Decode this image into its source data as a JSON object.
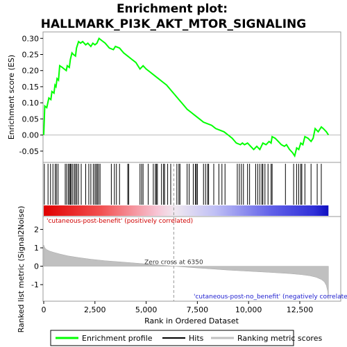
{
  "chart_data": {
    "type": "line",
    "title_line1": "Enrichment plot:",
    "title_line2": "HALLMARK_PI3K_AKT_MTOR_SIGNALING",
    "x_label": "Rank in Ordered Dataset",
    "es_panel": {
      "ylabel": "Enrichment score (ES)",
      "ylim": [
        -0.085,
        0.32
      ],
      "yticks": [
        -0.05,
        0.0,
        0.05,
        0.1,
        0.15,
        0.2,
        0.25,
        0.3
      ],
      "ytick_labels": [
        "-0.05",
        "0.00",
        "0.05",
        "0.10",
        "0.15",
        "0.20",
        "0.25",
        "0.30"
      ],
      "series_name": "Enrichment profile",
      "color": "#00ff00",
      "points": [
        [
          0,
          0.0
        ],
        [
          50,
          0.09
        ],
        [
          150,
          0.085
        ],
        [
          250,
          0.115
        ],
        [
          350,
          0.11
        ],
        [
          400,
          0.135
        ],
        [
          500,
          0.13
        ],
        [
          550,
          0.155
        ],
        [
          600,
          0.15
        ],
        [
          650,
          0.175
        ],
        [
          720,
          0.17
        ],
        [
          780,
          0.215
        ],
        [
          900,
          0.21
        ],
        [
          1000,
          0.205
        ],
        [
          1100,
          0.2
        ],
        [
          1150,
          0.215
        ],
        [
          1250,
          0.21
        ],
        [
          1300,
          0.235
        ],
        [
          1380,
          0.255
        ],
        [
          1450,
          0.25
        ],
        [
          1550,
          0.245
        ],
        [
          1600,
          0.27
        ],
        [
          1700,
          0.29
        ],
        [
          1800,
          0.285
        ],
        [
          1900,
          0.29
        ],
        [
          2050,
          0.28
        ],
        [
          2150,
          0.285
        ],
        [
          2300,
          0.275
        ],
        [
          2400,
          0.285
        ],
        [
          2500,
          0.28
        ],
        [
          2600,
          0.285
        ],
        [
          2700,
          0.3
        ],
        [
          2800,
          0.295
        ],
        [
          3000,
          0.285
        ],
        [
          3200,
          0.27
        ],
        [
          3400,
          0.265
        ],
        [
          3500,
          0.275
        ],
        [
          3700,
          0.27
        ],
        [
          3900,
          0.255
        ],
        [
          4100,
          0.245
        ],
        [
          4300,
          0.235
        ],
        [
          4500,
          0.225
        ],
        [
          4700,
          0.205
        ],
        [
          4850,
          0.215
        ],
        [
          5000,
          0.205
        ],
        [
          5200,
          0.195
        ],
        [
          5400,
          0.185
        ],
        [
          5600,
          0.175
        ],
        [
          5800,
          0.165
        ],
        [
          6000,
          0.155
        ],
        [
          6200,
          0.14
        ],
        [
          6400,
          0.125
        ],
        [
          6600,
          0.11
        ],
        [
          6800,
          0.095
        ],
        [
          7000,
          0.08
        ],
        [
          7200,
          0.07
        ],
        [
          7400,
          0.06
        ],
        [
          7600,
          0.05
        ],
        [
          7800,
          0.04
        ],
        [
          8000,
          0.035
        ],
        [
          8200,
          0.03
        ],
        [
          8400,
          0.02
        ],
        [
          8600,
          0.015
        ],
        [
          8800,
          0.01
        ],
        [
          9000,
          0.0
        ],
        [
          9200,
          -0.01
        ],
        [
          9400,
          -0.025
        ],
        [
          9600,
          -0.03
        ],
        [
          9700,
          -0.025
        ],
        [
          9800,
          -0.03
        ],
        [
          9950,
          -0.025
        ],
        [
          10100,
          -0.035
        ],
        [
          10250,
          -0.045
        ],
        [
          10400,
          -0.035
        ],
        [
          10550,
          -0.045
        ],
        [
          10700,
          -0.025
        ],
        [
          10850,
          -0.03
        ],
        [
          11000,
          -0.02
        ],
        [
          11100,
          -0.025
        ],
        [
          11150,
          -0.005
        ],
        [
          11300,
          -0.01
        ],
        [
          11450,
          -0.02
        ],
        [
          11600,
          -0.03
        ],
        [
          11750,
          -0.035
        ],
        [
          11850,
          -0.03
        ],
        [
          12000,
          -0.045
        ],
        [
          12150,
          -0.055
        ],
        [
          12250,
          -0.065
        ],
        [
          12350,
          -0.04
        ],
        [
          12450,
          -0.045
        ],
        [
          12550,
          -0.025
        ],
        [
          12650,
          -0.03
        ],
        [
          12750,
          -0.005
        ],
        [
          12900,
          -0.01
        ],
        [
          13050,
          -0.02
        ],
        [
          13150,
          -0.01
        ],
        [
          13250,
          0.02
        ],
        [
          13400,
          0.01
        ],
        [
          13550,
          0.025
        ],
        [
          13650,
          0.02
        ],
        [
          13800,
          0.01
        ],
        [
          13900,
          0.0
        ]
      ]
    },
    "hits_panel": {
      "series_name": "Hits",
      "color": "#000000",
      "positions": [
        30,
        210,
        330,
        450,
        560,
        620,
        700,
        1050,
        1120,
        1200,
        1260,
        1300,
        1350,
        1420,
        1500,
        1560,
        1620,
        1700,
        1830,
        2050,
        2200,
        2300,
        2420,
        2500,
        2560,
        2620,
        2680,
        2750,
        3300,
        3450,
        3550,
        3700,
        4100,
        4150,
        4700,
        4780,
        4850,
        5100,
        5350,
        5450,
        5500,
        5550,
        5750,
        5850,
        5900,
        6050,
        6200,
        6500,
        6600,
        6650,
        7000,
        7100,
        7300,
        7400,
        7450,
        7500,
        7800,
        7900,
        8000,
        8050,
        8300,
        8550,
        8700,
        8850,
        9450,
        9550,
        9650,
        9750,
        9950,
        10050,
        10350,
        10450,
        10550,
        10650,
        10700,
        10800,
        10950,
        11100,
        11150,
        11800,
        12200,
        12350,
        12450,
        12550,
        12600,
        12750,
        13050,
        13350,
        13550
      ]
    },
    "metric_panel": {
      "ylabel": "Ranked list metric (Signal2Noise)",
      "series_name": "Ranking metric scores",
      "ylim": [
        -1.9,
        2.7
      ],
      "yticks": [
        -1,
        0,
        1,
        2
      ],
      "ytick_labels": [
        "-1",
        "0",
        "1",
        "2"
      ],
      "fill_color": "#c0c0c0",
      "points": [
        [
          0,
          1.15
        ],
        [
          50,
          1.0
        ],
        [
          150,
          0.9
        ],
        [
          300,
          0.82
        ],
        [
          500,
          0.75
        ],
        [
          800,
          0.66
        ],
        [
          1200,
          0.56
        ],
        [
          1700,
          0.47
        ],
        [
          2300,
          0.38
        ],
        [
          3000,
          0.3
        ],
        [
          3800,
          0.23
        ],
        [
          4700,
          0.15
        ],
        [
          5500,
          0.08
        ],
        [
          6350,
          0.0
        ],
        [
          7200,
          -0.07
        ],
        [
          8000,
          -0.13
        ],
        [
          9000,
          -0.21
        ],
        [
          10000,
          -0.27
        ],
        [
          11000,
          -0.33
        ],
        [
          12000,
          -0.4
        ],
        [
          12600,
          -0.46
        ],
        [
          13000,
          -0.52
        ],
        [
          13300,
          -0.6
        ],
        [
          13550,
          -0.72
        ],
        [
          13700,
          -0.85
        ],
        [
          13800,
          -1.05
        ],
        [
          13860,
          -1.35
        ],
        [
          13900,
          -1.8
        ]
      ],
      "zero_cross_label": "Zero cross at 6350",
      "zero_cross": 6350,
      "pos_label": "'cutaneous-post-benefit' (positively correlated)",
      "neg_label": "'cutaneous-post-no_benefit' (negatively correlated)"
    },
    "x_axis": {
      "range": [
        0,
        14500
      ],
      "data_max": 13900,
      "ticks": [
        0,
        2500,
        5000,
        7500,
        10000,
        12500
      ],
      "tick_labels": [
        "0",
        "2,500",
        "5,000",
        "7,500",
        "10,000",
        "12,500"
      ]
    },
    "legend": {
      "position": "bottom",
      "entries": [
        {
          "label": "Enrichment profile",
          "color": "#00ff00",
          "kind": "line"
        },
        {
          "label": "Hits",
          "color": "#000000",
          "kind": "line"
        },
        {
          "label": "Ranking metric scores",
          "color": "#c0c0c0",
          "kind": "line"
        }
      ]
    }
  }
}
